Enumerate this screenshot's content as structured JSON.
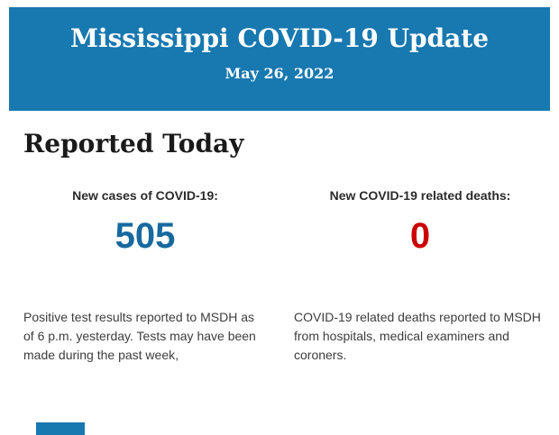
{
  "header": {
    "title": "Mississippi COVID-19 Update",
    "date": "May 26, 2022",
    "background_color": "#1878b0",
    "text_color": "#ffffff"
  },
  "main": {
    "section_title": "Reported Today",
    "columns": [
      {
        "label": "New cases of COVID-19:",
        "value": "505",
        "value_color": "#17699e",
        "description": "Positive test results reported to MSDH as of 6 p.m. yesterday. Tests may have been made during the past week,"
      },
      {
        "label": "New COVID-19 related deaths:",
        "value": "0",
        "value_color": "#cc0000",
        "description": "COVID-19 related deaths reported to MSDH from hospitals, medical examiners and coroners."
      }
    ]
  },
  "footer": {
    "partial_next_section_color": "#1878b0"
  }
}
